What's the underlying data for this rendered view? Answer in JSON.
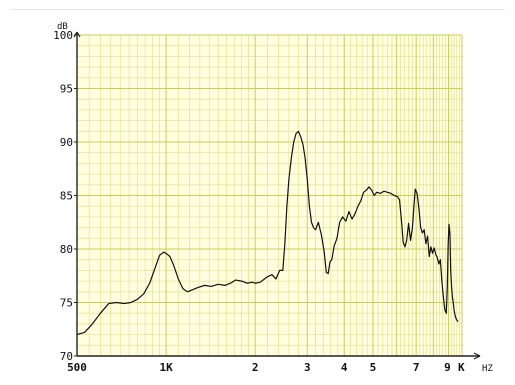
{
  "chart_data": {
    "type": "line",
    "title": "",
    "xlabel": "",
    "ylabel": "",
    "x_unit_label": "HZ",
    "y_unit_label": "dB",
    "x_scale": "log",
    "xlim": [
      500,
      10000
    ],
    "ylim": [
      70,
      100
    ],
    "grid": true,
    "y_ticks": [
      {
        "value": 100,
        "label": "100"
      },
      {
        "value": 95,
        "label": "95"
      },
      {
        "value": 90,
        "label": "90"
      },
      {
        "value": 85,
        "label": "85"
      },
      {
        "value": 80,
        "label": "80"
      },
      {
        "value": 75,
        "label": "75"
      },
      {
        "value": 70,
        "label": "70"
      }
    ],
    "x_ticks": [
      {
        "value": 500,
        "label": "500"
      },
      {
        "value": 1000,
        "label": "1K"
      },
      {
        "value": 2000,
        "label": "2"
      },
      {
        "value": 3000,
        "label": "3"
      },
      {
        "value": 4000,
        "label": "4"
      },
      {
        "value": 5000,
        "label": "5"
      },
      {
        "value": 7000,
        "label": "7"
      },
      {
        "value": 9000,
        "label": "9"
      },
      {
        "value": 10000,
        "label": "K"
      }
    ],
    "colors": {
      "plot_background": "#ffffe0",
      "grid_minor": "#e4e69a",
      "grid_major": "#c9cd5c",
      "curve": "#111111",
      "axis": "#222222"
    },
    "series": [
      {
        "x": [
          500,
          530,
          560,
          600,
          640,
          680,
          720,
          760,
          800,
          840,
          880,
          920,
          950,
          980,
          1000,
          1030,
          1060,
          1100,
          1140,
          1180,
          1230,
          1280,
          1350,
          1420,
          1500,
          1580,
          1650,
          1720,
          1800,
          1880,
          1950,
          2000,
          2080,
          2150,
          2200,
          2280,
          2350,
          2420,
          2480,
          2520,
          2560,
          2600,
          2650,
          2700,
          2750,
          2800,
          2850,
          2900,
          2950,
          3000,
          3050,
          3100,
          3150,
          3200,
          3270,
          3350,
          3420,
          3480,
          3530,
          3580,
          3630,
          3700,
          3780,
          3860,
          3950,
          4050,
          4150,
          4250,
          4350,
          4450,
          4550,
          4650,
          4750,
          4850,
          4950,
          5050,
          5150,
          5300,
          5450,
          5600,
          5750,
          5900,
          6050,
          6150,
          6250,
          6330,
          6420,
          6500,
          6600,
          6700,
          6800,
          6880,
          6950,
          7050,
          7150,
          7250,
          7350,
          7450,
          7550,
          7650,
          7750,
          7850,
          7950,
          8050,
          8150,
          8250,
          8350,
          8450,
          8550,
          8650,
          8750,
          8850,
          8920,
          8980,
          9040,
          9100,
          9160,
          9220,
          9280,
          9340,
          9400,
          9460,
          9520,
          9580,
          9640,
          9700
        ],
        "y": [
          72.0,
          72.2,
          72.9,
          74.0,
          74.9,
          75.0,
          74.9,
          75.0,
          75.3,
          75.8,
          76.8,
          78.3,
          79.4,
          79.7,
          79.6,
          79.3,
          78.5,
          77.2,
          76.3,
          76.0,
          76.2,
          76.4,
          76.6,
          76.5,
          76.7,
          76.6,
          76.8,
          77.1,
          77.0,
          76.8,
          76.9,
          76.8,
          76.9,
          77.2,
          77.4,
          77.6,
          77.2,
          78.0,
          78.0,
          80.5,
          84.0,
          86.5,
          88.5,
          90.0,
          90.8,
          91.0,
          90.5,
          89.8,
          88.5,
          86.5,
          84.0,
          82.5,
          82.0,
          81.8,
          82.5,
          81.3,
          79.8,
          77.8,
          77.7,
          78.8,
          79.0,
          80.3,
          81.0,
          82.5,
          83.0,
          82.6,
          83.5,
          82.8,
          83.3,
          84.0,
          84.5,
          85.3,
          85.5,
          85.8,
          85.5,
          85.0,
          85.3,
          85.2,
          85.4,
          85.3,
          85.2,
          85.0,
          84.9,
          84.6,
          82.5,
          80.6,
          80.2,
          80.8,
          82.4,
          80.8,
          82.0,
          84.0,
          85.6,
          85.2,
          83.8,
          82.0,
          81.5,
          81.8,
          80.5,
          81.2,
          79.3,
          80.2,
          79.6,
          80.1,
          79.5,
          79.2,
          78.6,
          79.0,
          77.0,
          75.5,
          74.3,
          74.0,
          76.5,
          80.5,
          82.3,
          81.5,
          78.0,
          76.5,
          75.5,
          75.0,
          74.3,
          73.9,
          73.6,
          73.4,
          73.3,
          73.2
        ]
      }
    ]
  }
}
